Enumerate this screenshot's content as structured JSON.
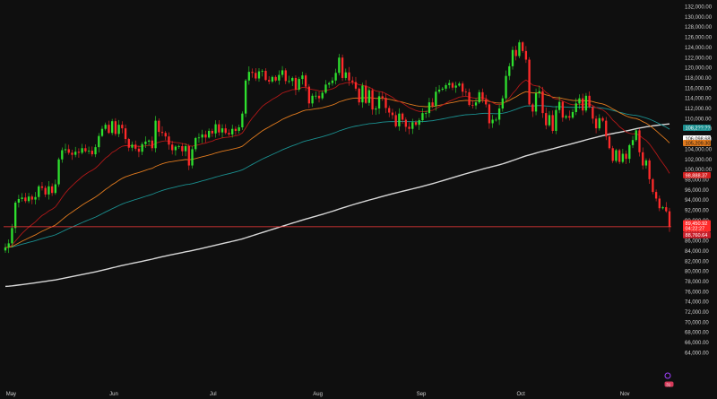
{
  "colors": {
    "background": "#0f0f0f",
    "up": "#2ee02e",
    "down": "#ff2a2a",
    "ema_short": "#b01818",
    "ema_mid": "#e07a1e",
    "ema_long": "#1a8f8f",
    "sma_200": "#d8d8d8",
    "price_line": "#ff3b3b",
    "axis_text": "#d0d0d0"
  },
  "chart_data": {
    "type": "candlestick",
    "title": "",
    "xlabel": "",
    "ylabel": "",
    "ylim": [
      62000,
      133500
    ],
    "y_ticks": [
      "132,000.00",
      "130,000.00",
      "128,000.00",
      "126,000.00",
      "124,000.00",
      "122,000.00",
      "120,000.00",
      "118,000.00",
      "116,000.00",
      "114,000.00",
      "112,000.00",
      "110,000.00",
      "108,000.00",
      "106,000.00",
      "104,000.00",
      "102,000.00",
      "100,000.00",
      "98,000.00",
      "96,000.00",
      "94,000.00",
      "92,000.00",
      "90,000.00",
      "88,000.00",
      "86,000.00",
      "84,000.00",
      "82,000.00",
      "80,000.00",
      "78,000.00",
      "76,000.00",
      "74,000.00",
      "72,000.00",
      "70,000.00",
      "68,000.00",
      "66,000.00",
      "64,000.00"
    ],
    "x_labels": [
      "May",
      "Jun",
      "Jul",
      "Aug",
      "Sep",
      "Oct",
      "Nov"
    ],
    "month_starts": [
      [
        "May",
        1
      ],
      [
        "Jun",
        32
      ],
      [
        "Jul",
        62
      ],
      [
        "Aug",
        93
      ],
      [
        "Sep",
        124
      ],
      [
        "Oct",
        154
      ],
      [
        "Nov",
        185
      ]
    ],
    "closes": [
      84700,
      85500,
      88500,
      93500,
      94200,
      94500,
      93800,
      94700,
      94100,
      94600,
      96700,
      96400,
      95100,
      96700,
      95400,
      97100,
      102000,
      103800,
      104000,
      103300,
      102900,
      103500,
      103300,
      104200,
      103600,
      103700,
      103000,
      104400,
      106600,
      108000,
      108800,
      107200,
      109500,
      107000,
      108800,
      108100,
      106000,
      104300,
      104900,
      104100,
      103500,
      105000,
      105500,
      105700,
      104200,
      109600,
      107400,
      107200,
      106500,
      104900,
      103800,
      104500,
      104600,
      103600,
      104600,
      100800,
      104000,
      106200,
      106300,
      106900,
      106300,
      107600,
      107100,
      108900,
      107300,
      108100,
      107200,
      106900,
      108000,
      107600,
      108300,
      111000,
      117500,
      119200,
      119000,
      117900,
      119300,
      119400,
      117600,
      117300,
      118200,
      117500,
      118600,
      119500,
      117400,
      117400,
      118000,
      115700,
      117800,
      118500,
      116300,
      113000,
      114500,
      114500,
      114000,
      115100,
      116700,
      117000,
      117500,
      119000,
      122000,
      118000,
      119100,
      117500,
      117200,
      115900,
      113200,
      116500,
      113100,
      115600,
      111800,
      112000,
      114400,
      114100,
      112100,
      111200,
      110700,
      108500,
      111000,
      109800,
      108400,
      108000,
      109300,
      108800,
      109700,
      111100,
      111100,
      113200,
      112500,
      115300,
      115700,
      115900,
      116600,
      117000,
      116100,
      116500,
      116900,
      115300,
      115200,
      112700,
      112600,
      113200,
      115200,
      113800,
      112800,
      109100,
      109800,
      109800,
      112000,
      114000,
      118400,
      120300,
      123500,
      122300,
      125000,
      123300,
      121600,
      112800,
      111400,
      115000,
      115400,
      111100,
      108700,
      110700,
      107600,
      111700,
      113300,
      110200,
      110500,
      110200,
      111300,
      113000,
      114000,
      111600,
      114500,
      112300,
      110000,
      108100,
      110100,
      109600,
      106500,
      104200,
      101700,
      103800,
      101500,
      103100,
      102100,
      104800,
      105800,
      107700,
      103400,
      100800,
      101800,
      98100,
      95600,
      94300,
      92400,
      92600,
      91800,
      88800
    ]
  },
  "price_tags": {
    "ema_long_value": "108,2??.??",
    "sma_200_value": "106,098.68",
    "ema_mid_value": "105,209.30",
    "ema_short_value": "98,888.37",
    "last_price": "89,450.92",
    "countdown": "04:22:27",
    "low_marker": "88,760.64"
  }
}
